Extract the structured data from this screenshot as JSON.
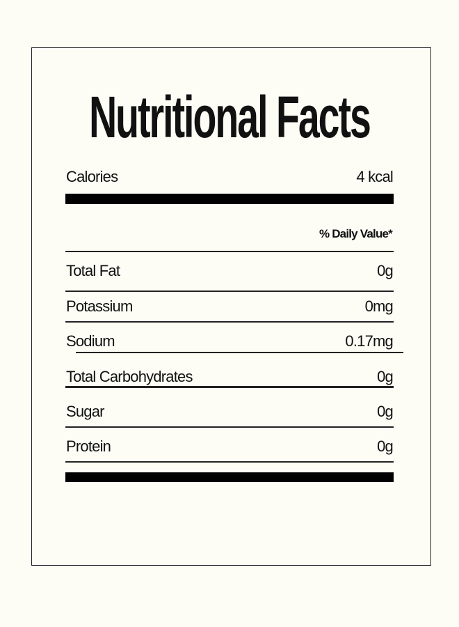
{
  "title": "Nutritional Facts",
  "calories": {
    "label": "Calories",
    "value": "4 kcal"
  },
  "daily_value_header": "% Daily Value*",
  "nutrients": [
    {
      "label": "Total Fat",
      "value": "0g"
    },
    {
      "label": "Potassium",
      "value": "0mg"
    },
    {
      "label": "Sodium",
      "value": "0.17mg"
    },
    {
      "label": "Total Carbohydrates",
      "value": "0g"
    },
    {
      "label": "Sugar",
      "value": "0g"
    },
    {
      "label": "Protein",
      "value": "0g"
    }
  ]
}
